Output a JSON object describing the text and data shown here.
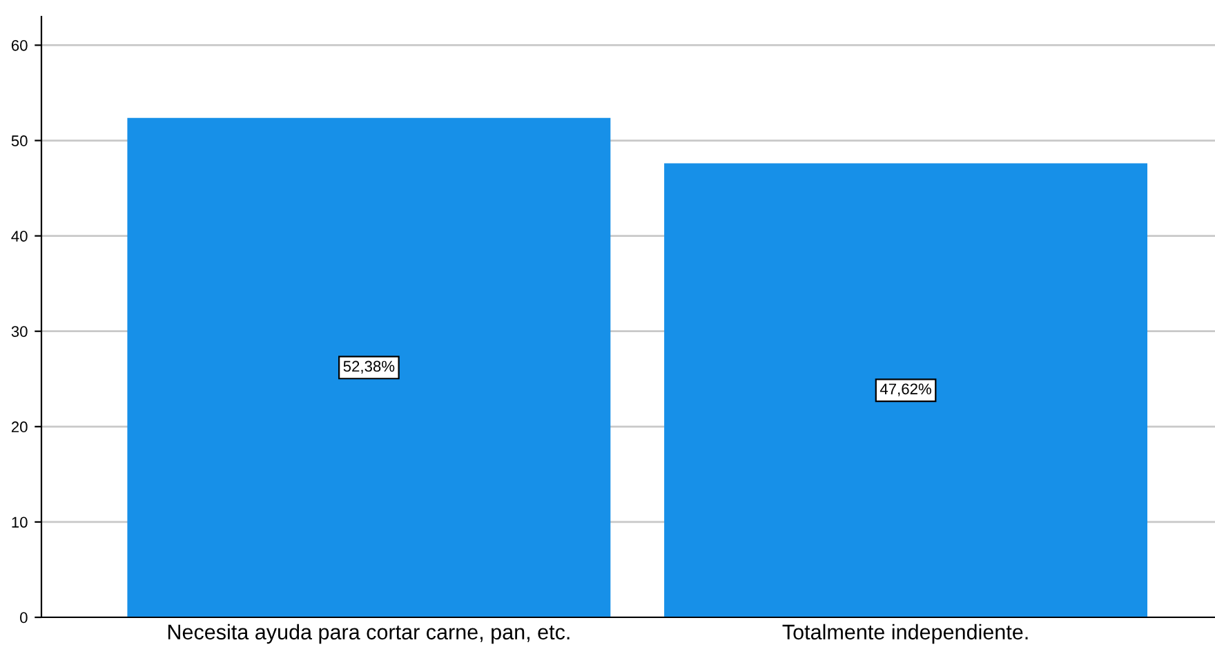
{
  "chart_data": {
    "type": "bar",
    "categories": [
      "Necesita ayuda para cortar carne, pan, etc.",
      "Totalmente independiente."
    ],
    "values": [
      52.38,
      47.62
    ],
    "value_labels": [
      "52,38%",
      "47,62%"
    ],
    "color": "#1790e8",
    "ylim": [
      0,
      63
    ],
    "yticks": [
      0,
      10,
      20,
      30,
      40,
      50,
      60
    ],
    "grid": "y"
  }
}
